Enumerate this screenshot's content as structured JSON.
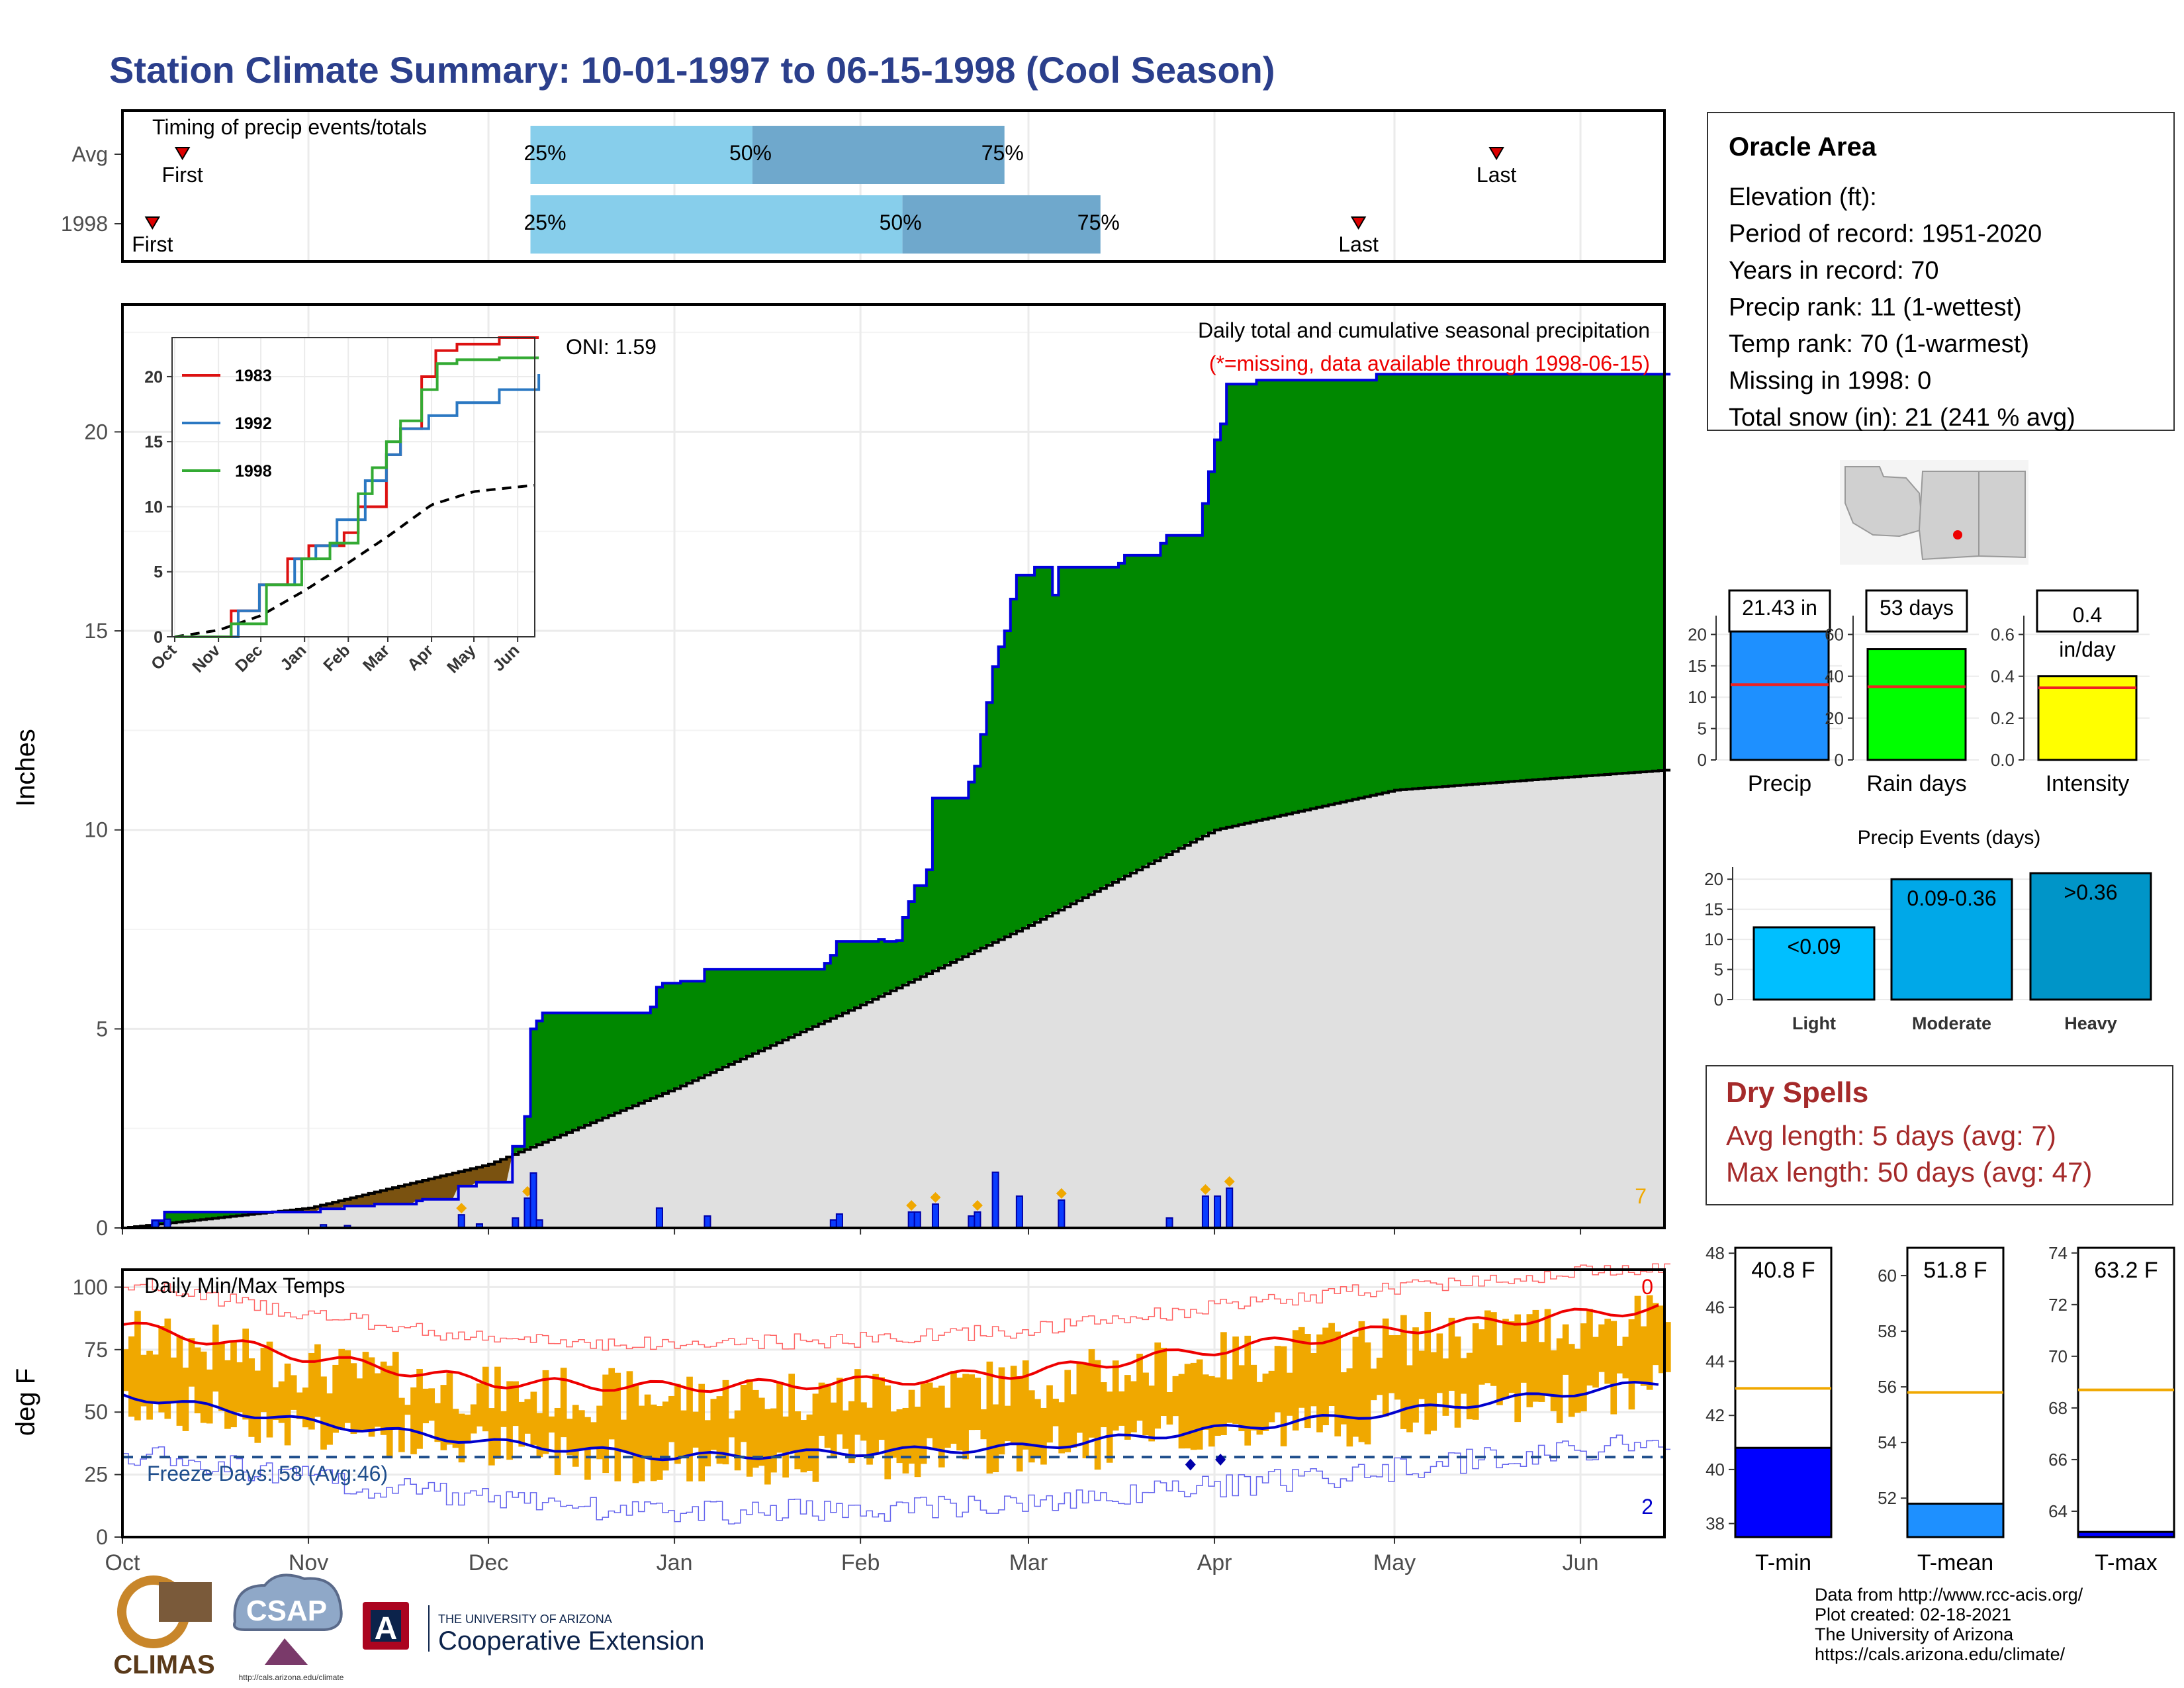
{
  "title": "Station Climate Summary: 10-01-1997 to 06-15-1998 (Cool Season)",
  "colors": {
    "title": "#2b3f8c",
    "green": "#008800",
    "brown": "#7a5210",
    "gray_fill": "#e0e0e0",
    "blue_line": "#0000dd",
    "bar_blue": "#0a3cff",
    "light_blue": "#87ceeb",
    "mid_blue": "#6fa8cc",
    "orange": "#f0a800",
    "tmax_red": "#ee0000",
    "tmin_blue": "#0000cc",
    "dry_red": "#a52a2a",
    "freeze_line": "#1f4e8c"
  },
  "timing": {
    "title": "Timing of precip events/totals",
    "row_labels": [
      "Avg",
      "1998"
    ],
    "first_label": "First",
    "last_label": "Last",
    "pct_labels": [
      "25%",
      "50%",
      "75%"
    ],
    "avg": {
      "first": "1997-10-11",
      "p25": "1997-12-08",
      "p50": "1998-01-14",
      "p75": "1998-02-25",
      "last": "1998-05-18"
    },
    "y1998": {
      "first": "1997-10-06",
      "p25": "1997-12-08",
      "p50": "1998-02-08",
      "p75": "1998-03-13",
      "last": "1998-04-25"
    }
  },
  "precip": {
    "ylabel": "Inches",
    "yticks": [
      0,
      5,
      10,
      15,
      20
    ],
    "ylim": [
      0,
      23.2
    ],
    "title": "Daily total and cumulative seasonal precipitation",
    "missing_note": "(*=missing, data available through 1998-06-15)",
    "oni_label": "ONI: 1.59",
    "corner_count": "7",
    "cumulative_1998": [
      [
        "1997-10-01",
        0
      ],
      [
        "1997-10-06",
        0.18
      ],
      [
        "1997-10-08",
        0.4
      ],
      [
        "1997-11-03",
        0.48
      ],
      [
        "1997-11-07",
        0.55
      ],
      [
        "1997-11-12",
        0.6
      ],
      [
        "1997-11-19",
        0.68
      ],
      [
        "1997-11-20",
        0.72
      ],
      [
        "1997-11-26",
        1.05
      ],
      [
        "1997-11-29",
        1.15
      ],
      [
        "1997-12-05",
        2.05
      ],
      [
        "1997-12-07",
        2.8
      ],
      [
        "1997-12-08",
        5.0
      ],
      [
        "1997-12-09",
        5.2
      ],
      [
        "1997-12-10",
        5.4
      ],
      [
        "1997-12-28",
        5.55
      ],
      [
        "1997-12-29",
        6.05
      ],
      [
        "1997-12-30",
        6.15
      ],
      [
        "1998-01-02",
        6.2
      ],
      [
        "1998-01-06",
        6.5
      ],
      [
        "1998-01-26",
        6.65
      ],
      [
        "1998-01-27",
        6.85
      ],
      [
        "1998-01-28",
        7.2
      ],
      [
        "1998-02-04",
        7.25
      ],
      [
        "1998-02-05",
        7.2
      ],
      [
        "1998-02-07",
        7.22
      ],
      [
        "1998-02-08",
        7.8
      ],
      [
        "1998-02-09",
        8.2
      ],
      [
        "1998-02-10",
        8.6
      ],
      [
        "1998-02-12",
        9.0
      ],
      [
        "1998-02-13",
        10.8
      ],
      [
        "1998-02-19",
        11.2
      ],
      [
        "1998-02-20",
        11.6
      ],
      [
        "1998-02-21",
        12.4
      ],
      [
        "1998-02-22",
        13.2
      ],
      [
        "1998-02-23",
        14.1
      ],
      [
        "1998-02-24",
        14.6
      ],
      [
        "1998-02-25",
        15.0
      ],
      [
        "1998-02-26",
        15.8
      ],
      [
        "1998-02-27",
        16.4
      ],
      [
        "1998-03-02",
        16.6
      ],
      [
        "1998-03-05",
        15.9
      ],
      [
        "1998-03-06",
        16.6
      ],
      [
        "1998-03-16",
        16.7
      ],
      [
        "1998-03-17",
        16.9
      ],
      [
        "1998-03-23",
        17.2
      ],
      [
        "1998-03-24",
        17.4
      ],
      [
        "1998-03-30",
        18.2
      ],
      [
        "1998-03-31",
        19.0
      ],
      [
        "1998-04-01",
        19.8
      ],
      [
        "1998-04-02",
        20.2
      ],
      [
        "1998-04-03",
        21.2
      ],
      [
        "1998-04-08",
        21.3
      ],
      [
        "1998-04-28",
        21.45
      ],
      [
        "1998-06-15",
        21.45
      ]
    ],
    "average_cumulative": [
      [
        "1997-10-01",
        0
      ],
      [
        "1997-11-01",
        0.5
      ],
      [
        "1997-12-01",
        1.6
      ],
      [
        "1998-01-01",
        3.5
      ],
      [
        "1998-02-01",
        5.6
      ],
      [
        "1998-03-01",
        7.6
      ],
      [
        "1998-04-01",
        10.0
      ],
      [
        "1998-05-01",
        11.0
      ],
      [
        "1998-06-01",
        11.35
      ],
      [
        "1998-06-15",
        11.5
      ]
    ],
    "daily_events": [
      [
        "1997-10-06",
        0.18
      ],
      [
        "1997-10-08",
        0.22
      ],
      [
        "1997-11-03",
        0.08
      ],
      [
        "1997-11-07",
        0.06
      ],
      [
        "1997-11-26",
        0.33
      ],
      [
        "1997-11-29",
        0.1
      ],
      [
        "1997-12-05",
        0.25
      ],
      [
        "1997-12-07",
        0.75
      ],
      [
        "1997-12-08",
        1.38
      ],
      [
        "1997-12-09",
        0.2
      ],
      [
        "1997-12-29",
        0.5
      ],
      [
        "1998-01-06",
        0.3
      ],
      [
        "1998-01-27",
        0.2
      ],
      [
        "1998-01-28",
        0.35
      ],
      [
        "1998-02-09",
        0.4
      ],
      [
        "1998-02-10",
        0.4
      ],
      [
        "1998-02-13",
        0.6
      ],
      [
        "1998-02-19",
        0.3
      ],
      [
        "1998-02-20",
        0.4
      ],
      [
        "1998-02-23",
        1.4
      ],
      [
        "1998-02-27",
        0.8
      ],
      [
        "1998-03-06",
        0.7
      ],
      [
        "1998-03-24",
        0.25
      ],
      [
        "1998-03-30",
        0.8
      ],
      [
        "1998-04-01",
        0.8
      ],
      [
        "1998-04-03",
        1.0
      ]
    ]
  },
  "inset": {
    "yticks": [
      0,
      5,
      10,
      15,
      20
    ],
    "xticks": [
      "Oct",
      "Nov",
      "Dec",
      "Jan",
      "Feb",
      "Mar",
      "Apr",
      "May",
      "Jun"
    ],
    "series": [
      {
        "name": "1983",
        "color": "#dd1111"
      },
      {
        "name": "1992",
        "color": "#2b78c2"
      },
      {
        "name": "1998",
        "color": "#33aa33"
      }
    ]
  },
  "temp": {
    "ylabel": "deg F",
    "yticks": [
      0,
      25,
      50,
      75,
      100
    ],
    "title": "Daily Min/Max Temps",
    "freeze_label": "Freeze Days: 58 (Avg:46)",
    "count_top": "0",
    "count_bottom": "2",
    "avg_tmax": [
      [
        "1997-10-01",
        85
      ],
      [
        "1997-11-01",
        72
      ],
      [
        "1997-12-01",
        62
      ],
      [
        "1998-01-01",
        60
      ],
      [
        "1998-02-01",
        62
      ],
      [
        "1998-03-01",
        66
      ],
      [
        "1998-04-01",
        75
      ],
      [
        "1998-05-01",
        83
      ],
      [
        "1998-06-15",
        92
      ]
    ],
    "avg_tmin": [
      [
        "1997-10-01",
        57
      ],
      [
        "1997-11-01",
        46
      ],
      [
        "1997-12-01",
        38
      ],
      [
        "1998-01-01",
        32
      ],
      [
        "1998-02-01",
        34
      ],
      [
        "1998-03-01",
        36
      ],
      [
        "1998-04-01",
        43
      ],
      [
        "1998-05-01",
        50
      ],
      [
        "1998-06-15",
        62
      ]
    ]
  },
  "xaxis_months": [
    "Oct",
    "Nov",
    "Dec",
    "Jan",
    "Feb",
    "Mar",
    "Apr",
    "May",
    "Jun"
  ],
  "station": {
    "name": "Oracle Area",
    "lines": [
      "Elevation (ft):",
      "Period of record: 1951-2020",
      "Years in record: 70",
      "Precip rank: 11 (1-wettest)",
      "Temp rank: 70 (1-warmest)",
      "Missing in 1998: 0",
      "Total snow (in): 21 (241 % avg)"
    ]
  },
  "summary_bars": [
    {
      "label": "Precip",
      "value": 21.43,
      "value_label": "21.43 in",
      "avg": 12,
      "ymax": 23,
      "yticks": [
        "0",
        "5",
        "10",
        "15",
        "20"
      ],
      "tickvals": [
        0,
        5,
        10,
        15,
        20
      ],
      "color": "#1e90ff"
    },
    {
      "label": "Rain days",
      "value": 53,
      "value_label": "53 days",
      "avg": 35,
      "ymax": 69,
      "yticks": [
        "0",
        "20",
        "40",
        "60"
      ],
      "tickvals": [
        0,
        20,
        40,
        60
      ],
      "color": "#00ff00"
    },
    {
      "label": "Intensity",
      "value": 0.4,
      "value_label": "0.4 in/day",
      "avg": 0.345,
      "ymax": 0.69,
      "yticks": [
        "0.0",
        "0.2",
        "0.4",
        "0.6"
      ],
      "tickvals": [
        0,
        0.2,
        0.4,
        0.6
      ],
      "color": "#ffff00"
    }
  ],
  "events": {
    "title": "Precip Events (days)",
    "yticks": [
      0,
      5,
      10,
      15,
      20
    ],
    "bars": [
      {
        "label": "Light",
        "range": "<0.09",
        "value": 12,
        "color": "#00bfff"
      },
      {
        "label": "Moderate",
        "range": "0.09-0.36",
        "value": 20,
        "color": "#00a8e8"
      },
      {
        "label": "Heavy",
        "range": ">0.36",
        "value": 21,
        "color": "#0095c8"
      }
    ]
  },
  "dry_spells": {
    "title": "Dry Spells",
    "lines": [
      "Avg length: 5 days (avg: 7)",
      "Max length: 50 days (avg: 47)"
    ]
  },
  "temp_bars": [
    {
      "label": "T-min",
      "value": 40.8,
      "value_label": "40.8 F",
      "avg": 43,
      "ylim": [
        37.5,
        48.2
      ],
      "yticks": [
        38,
        40,
        42,
        44,
        46,
        48
      ],
      "color": "#0000ff"
    },
    {
      "label": "T-mean",
      "value": 51.8,
      "value_label": "51.8 F",
      "avg": 55.8,
      "ylim": [
        50.6,
        61
      ],
      "yticks": [
        52,
        54,
        56,
        58,
        60
      ],
      "color": "#1e90ff"
    },
    {
      "label": "T-max",
      "value": 63.2,
      "value_label": "63.2 F",
      "avg": 68.7,
      "ylim": [
        63,
        74.2
      ],
      "yticks": [
        64,
        66,
        68,
        70,
        72,
        74
      ],
      "color": "#0000ff"
    }
  ],
  "footer": {
    "credits": [
      "Data from http://www.rcc-acis.org/",
      "Plot created: 02-18-2021",
      "The University of Arizona",
      "https://cals.arizona.edu/climate/"
    ],
    "logo_climas": "CLIMAS",
    "logo_csap": "CSAP",
    "csap_url": "http://cals.arizona.edu/climate",
    "ua_small": "THE UNIVERSITY OF ARIZONA",
    "ua_big": "Cooperative Extension"
  }
}
